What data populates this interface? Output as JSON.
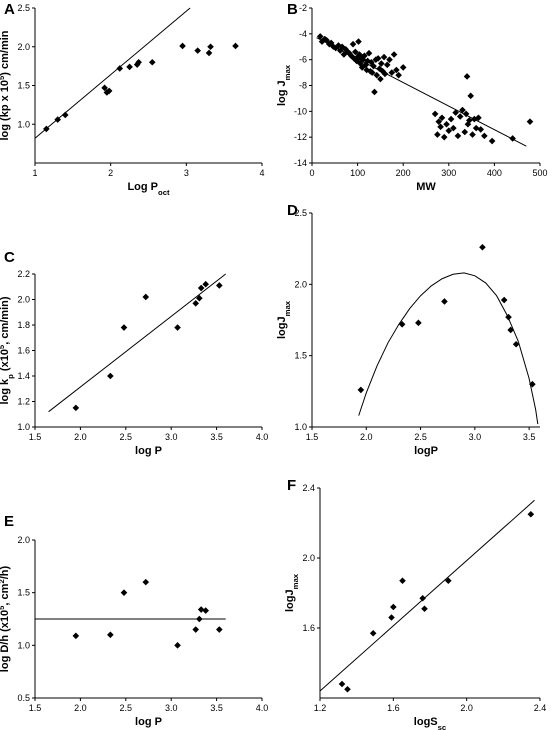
{
  "chart_data": [
    {
      "panel": "A",
      "type": "scatter",
      "xlabel": "Log P_oct",
      "ylabel": "log (kp x 10^5) cm/min",
      "xlim": [
        1,
        4
      ],
      "ylim": [
        0.5,
        2.5
      ],
      "xticks": [
        "1",
        "2",
        "3",
        "4"
      ],
      "yticks": [
        "1.0",
        "1.5",
        "2.0",
        "2.5"
      ],
      "points": [
        [
          1.15,
          0.94
        ],
        [
          1.3,
          1.06
        ],
        [
          1.4,
          1.12
        ],
        [
          1.92,
          1.47
        ],
        [
          1.95,
          1.41
        ],
        [
          1.98,
          1.43
        ],
        [
          2.12,
          1.72
        ],
        [
          2.25,
          1.74
        ],
        [
          2.35,
          1.77
        ],
        [
          2.37,
          1.8
        ],
        [
          2.55,
          1.8
        ],
        [
          2.95,
          2.01
        ],
        [
          3.15,
          1.95
        ],
        [
          3.3,
          1.92
        ],
        [
          3.32,
          2.0
        ],
        [
          3.65,
          2.01
        ]
      ],
      "fit_line": [
        [
          1,
          0.82
        ],
        [
          3.05,
          2.5
        ]
      ],
      "grid": false
    },
    {
      "panel": "B",
      "type": "scatter",
      "xlabel": "MW",
      "ylabel": "log J_max",
      "xlim": [
        0,
        500
      ],
      "ylim": [
        -14,
        -2
      ],
      "xticks": [
        "0",
        "100",
        "200",
        "300",
        "400",
        "500"
      ],
      "yticks": [
        "-14",
        "-12",
        "-10",
        "-8",
        "-6",
        "-4",
        "-2"
      ],
      "points": [
        [
          18,
          -4.2
        ],
        [
          22,
          -4.6
        ],
        [
          28,
          -4.4
        ],
        [
          32,
          -4.5
        ],
        [
          38,
          -4.8
        ],
        [
          42,
          -4.7
        ],
        [
          47,
          -5.0
        ],
        [
          52,
          -5.1
        ],
        [
          58,
          -4.9
        ],
        [
          62,
          -5.3
        ],
        [
          66,
          -5.0
        ],
        [
          70,
          -5.6
        ],
        [
          74,
          -5.2
        ],
        [
          78,
          -5.4
        ],
        [
          82,
          -5.5
        ],
        [
          86,
          -5.7
        ],
        [
          90,
          -4.8
        ],
        [
          92,
          -5.9
        ],
        [
          95,
          -5.4
        ],
        [
          98,
          -6.1
        ],
        [
          100,
          -5.8
        ],
        [
          102,
          -4.6
        ],
        [
          104,
          -5.6
        ],
        [
          106,
          -6.3
        ],
        [
          108,
          -5.9
        ],
        [
          110,
          -6.6
        ],
        [
          112,
          -6.0
        ],
        [
          115,
          -5.7
        ],
        [
          118,
          -6.4
        ],
        [
          120,
          -6.8
        ],
        [
          122,
          -6.1
        ],
        [
          125,
          -5.5
        ],
        [
          128,
          -6.9
        ],
        [
          130,
          -6.2
        ],
        [
          132,
          -7.0
        ],
        [
          135,
          -6.5
        ],
        [
          137,
          -8.5
        ],
        [
          140,
          -6.0
        ],
        [
          142,
          -7.2
        ],
        [
          145,
          -5.9
        ],
        [
          148,
          -6.7
        ],
        [
          150,
          -7.5
        ],
        [
          152,
          -6.3
        ],
        [
          155,
          -6.9
        ],
        [
          158,
          -5.8
        ],
        [
          160,
          -7.1
        ],
        [
          165,
          -6.4
        ],
        [
          170,
          -6.0
        ],
        [
          175,
          -7.0
        ],
        [
          180,
          -5.6
        ],
        [
          185,
          -6.8
        ],
        [
          190,
          -7.2
        ],
        [
          200,
          -6.6
        ],
        [
          270,
          -10.2
        ],
        [
          275,
          -11.8
        ],
        [
          278,
          -10.8
        ],
        [
          282,
          -11.2
        ],
        [
          285,
          -10.5
        ],
        [
          290,
          -12.0
        ],
        [
          295,
          -11.0
        ],
        [
          300,
          -11.5
        ],
        [
          305,
          -10.6
        ],
        [
          310,
          -11.3
        ],
        [
          315,
          -10.1
        ],
        [
          320,
          -11.9
        ],
        [
          325,
          -10.4
        ],
        [
          330,
          -9.9
        ],
        [
          335,
          -11.6
        ],
        [
          338,
          -10.2
        ],
        [
          340,
          -7.3
        ],
        [
          342,
          -11.0
        ],
        [
          345,
          -10.7
        ],
        [
          348,
          -8.8
        ],
        [
          352,
          -11.8
        ],
        [
          356,
          -10.6
        ],
        [
          360,
          -11.3
        ],
        [
          365,
          -10.5
        ],
        [
          370,
          -11.4
        ],
        [
          378,
          -11.9
        ],
        [
          395,
          -12.3
        ],
        [
          440,
          -12.1
        ],
        [
          478,
          -10.8
        ]
      ],
      "fit_line": [
        [
          10,
          -4.3
        ],
        [
          470,
          -12.7
        ]
      ],
      "grid": false
    },
    {
      "panel": "C",
      "type": "scatter",
      "xlabel": "log P",
      "ylabel": "log k_p (x10^5, cm/min)",
      "xlim": [
        1.5,
        4.0
      ],
      "ylim": [
        1.0,
        2.2
      ],
      "xticks": [
        "1.5",
        "2.0",
        "2.5",
        "3.0",
        "3.5",
        "4.0"
      ],
      "yticks": [
        "1.0",
        "1.2",
        "1.4",
        "1.6",
        "1.8",
        "2.0",
        "2.2"
      ],
      "points": [
        [
          1.95,
          1.15
        ],
        [
          2.33,
          1.4
        ],
        [
          2.48,
          1.78
        ],
        [
          2.72,
          2.02
        ],
        [
          3.07,
          1.78
        ],
        [
          3.27,
          1.97
        ],
        [
          3.31,
          2.01
        ],
        [
          3.33,
          2.09
        ],
        [
          3.38,
          2.12
        ],
        [
          3.53,
          2.11
        ]
      ],
      "fit_line": [
        [
          1.65,
          1.12
        ],
        [
          3.6,
          2.2
        ]
      ],
      "grid": false
    },
    {
      "panel": "D",
      "type": "scatter",
      "xlabel": "logP",
      "ylabel": "logJ_max",
      "xlim": [
        1.5,
        3.6
      ],
      "ylim": [
        1.0,
        2.5
      ],
      "xticks": [
        "1.5",
        "2.0",
        "2.5",
        "3.0",
        "3.5"
      ],
      "yticks": [
        "1.0",
        "1.5",
        "2.0",
        "2.5"
      ],
      "points": [
        [
          1.95,
          1.26
        ],
        [
          2.33,
          1.72
        ],
        [
          2.48,
          1.73
        ],
        [
          2.72,
          1.88
        ],
        [
          3.07,
          2.26
        ],
        [
          3.27,
          1.89
        ],
        [
          3.31,
          1.77
        ],
        [
          3.33,
          1.68
        ],
        [
          3.38,
          1.58
        ],
        [
          3.53,
          1.3
        ]
      ],
      "fit_curve": [
        [
          1.93,
          1.08
        ],
        [
          2.0,
          1.24
        ],
        [
          2.1,
          1.43
        ],
        [
          2.2,
          1.59
        ],
        [
          2.3,
          1.72
        ],
        [
          2.4,
          1.83
        ],
        [
          2.5,
          1.92
        ],
        [
          2.6,
          1.99
        ],
        [
          2.7,
          2.04
        ],
        [
          2.8,
          2.07
        ],
        [
          2.9,
          2.08
        ],
        [
          3.0,
          2.06
        ],
        [
          3.1,
          2.01
        ],
        [
          3.2,
          1.92
        ],
        [
          3.3,
          1.78
        ],
        [
          3.4,
          1.6
        ],
        [
          3.5,
          1.34
        ],
        [
          3.56,
          1.12
        ],
        [
          3.58,
          1.02
        ]
      ],
      "grid": false
    },
    {
      "panel": "E",
      "type": "scatter",
      "xlabel": "log P",
      "ylabel": "log D/h (x10^5, cm^2/h)",
      "xlim": [
        1.5,
        4.0
      ],
      "ylim": [
        0.5,
        2.0
      ],
      "xticks": [
        "1.5",
        "2.0",
        "2.5",
        "3.0",
        "3.5",
        "4.0"
      ],
      "yticks": [
        "0.5",
        "1.0",
        "1.5",
        "2.0"
      ],
      "points": [
        [
          1.95,
          1.09
        ],
        [
          2.33,
          1.1
        ],
        [
          2.48,
          1.5
        ],
        [
          2.72,
          1.6
        ],
        [
          3.07,
          1.0
        ],
        [
          3.27,
          1.15
        ],
        [
          3.31,
          1.25
        ],
        [
          3.33,
          1.34
        ],
        [
          3.38,
          1.33
        ],
        [
          3.53,
          1.15
        ]
      ],
      "fit_line": [
        [
          1.5,
          1.25
        ],
        [
          3.6,
          1.25
        ]
      ],
      "grid": false
    },
    {
      "panel": "F",
      "type": "scatter",
      "xlabel": "logS_sc",
      "ylabel": "logJ_max",
      "xlim": [
        1.2,
        2.4
      ],
      "ylim": [
        1.2,
        2.4
      ],
      "xticks": [
        "1.2",
        "1.6",
        "2.0",
        "2.4"
      ],
      "yticks": [
        "1.6",
        "2.0",
        "2.4"
      ],
      "points": [
        [
          1.32,
          1.28
        ],
        [
          1.35,
          1.25
        ],
        [
          1.49,
          1.57
        ],
        [
          1.59,
          1.66
        ],
        [
          1.6,
          1.72
        ],
        [
          1.65,
          1.87
        ],
        [
          1.76,
          1.77
        ],
        [
          1.77,
          1.71
        ],
        [
          1.9,
          1.87
        ],
        [
          2.35,
          2.25
        ]
      ],
      "fit_line": [
        [
          1.2,
          1.24
        ],
        [
          2.37,
          2.33
        ]
      ],
      "grid": false
    }
  ]
}
